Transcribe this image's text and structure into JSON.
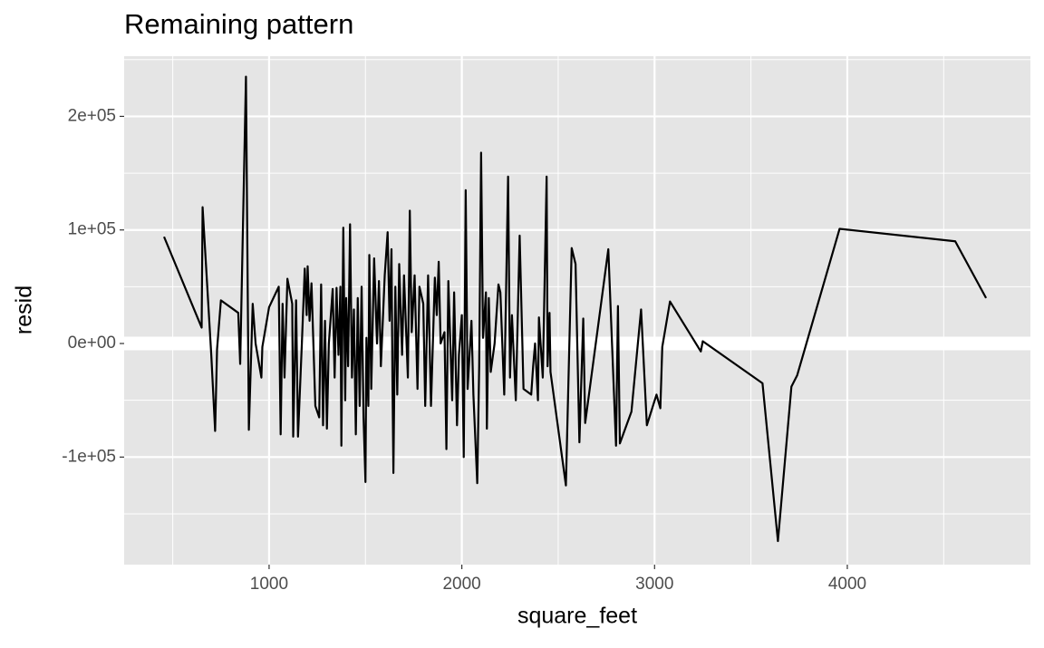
{
  "chart_data": {
    "type": "line",
    "title": "Remaining pattern",
    "x_label": "square_feet",
    "y_label": "resid",
    "color": "#000000",
    "panel_color": "#e5e5e5",
    "grid": true,
    "hline": {
      "value": 0,
      "color": "#ffffff"
    },
    "xlim": [
      248,
      4950
    ],
    "ylim": [
      -194700,
      253000
    ],
    "xticks": [
      1000,
      2000,
      3000,
      4000
    ],
    "yticks": [
      {
        "value": -100000,
        "label": "-1e+05"
      },
      {
        "value": 0,
        "label": "0e+00"
      },
      {
        "value": 100000,
        "label": "1e+05"
      },
      {
        "value": 200000,
        "label": "2e+05"
      }
    ],
    "x": [
      455,
      650,
      655,
      700,
      720,
      730,
      750,
      840,
      850,
      880,
      895,
      915,
      930,
      960,
      965,
      1000,
      1050,
      1060,
      1070,
      1080,
      1095,
      1120,
      1125,
      1140,
      1150,
      1170,
      1185,
      1195,
      1200,
      1210,
      1220,
      1240,
      1260,
      1270,
      1280,
      1290,
      1300,
      1310,
      1330,
      1340,
      1350,
      1360,
      1370,
      1375,
      1385,
      1395,
      1400,
      1410,
      1420,
      1430,
      1440,
      1450,
      1460,
      1470,
      1480,
      1490,
      1500,
      1505,
      1515,
      1520,
      1530,
      1545,
      1560,
      1570,
      1580,
      1600,
      1615,
      1625,
      1635,
      1640,
      1645,
      1655,
      1665,
      1675,
      1690,
      1700,
      1720,
      1730,
      1740,
      1755,
      1770,
      1780,
      1800,
      1810,
      1825,
      1840,
      1860,
      1870,
      1880,
      1890,
      1910,
      1920,
      1930,
      1950,
      1960,
      1975,
      1985,
      2000,
      2010,
      2020,
      2030,
      2050,
      2060,
      2080,
      2090,
      2100,
      2110,
      2125,
      2130,
      2140,
      2150,
      2170,
      2190,
      2200,
      2220,
      2240,
      2250,
      2260,
      2280,
      2300,
      2320,
      2360,
      2370,
      2380,
      2395,
      2400,
      2420,
      2440,
      2445,
      2455,
      2460,
      2540,
      2570,
      2590,
      2610,
      2630,
      2640,
      2760,
      2800,
      2810,
      2820,
      2880,
      2930,
      2960,
      3010,
      3030,
      3040,
      3080,
      3240,
      3250,
      3560,
      3640,
      3710,
      3740,
      3960,
      4560,
      4720
    ],
    "values": [
      94000,
      14000,
      120000,
      -10000,
      -77000,
      -5000,
      38000,
      27000,
      -18000,
      235000,
      -76000,
      35000,
      0,
      -30000,
      -3000,
      32000,
      50000,
      -80000,
      35000,
      -30000,
      57000,
      35000,
      -82000,
      38000,
      -82000,
      0,
      66000,
      25000,
      68000,
      20000,
      53000,
      -55000,
      -65000,
      52000,
      -72000,
      20000,
      -75000,
      0,
      48000,
      -30000,
      49000,
      -10000,
      50000,
      -90000,
      102000,
      -50000,
      40000,
      -20000,
      105000,
      -30000,
      30000,
      -80000,
      40000,
      -55000,
      50000,
      -65000,
      -122000,
      5000,
      -55000,
      78000,
      -40000,
      75000,
      0,
      55000,
      -20000,
      60000,
      98000,
      20000,
      83000,
      -30000,
      -114000,
      50000,
      -45000,
      70000,
      -10000,
      60000,
      -30000,
      117000,
      10000,
      60000,
      -40000,
      50000,
      35000,
      -55000,
      60000,
      -55000,
      58000,
      25000,
      72000,
      0,
      10000,
      -93000,
      55000,
      -50000,
      45000,
      -72000,
      -10000,
      25000,
      -100000,
      135000,
      -40000,
      20000,
      -45000,
      -123000,
      -20000,
      168000,
      5000,
      45000,
      -75000,
      40000,
      -25000,
      0,
      52000,
      45000,
      -45000,
      147000,
      -30000,
      25000,
      -50000,
      95000,
      -40000,
      -45000,
      -20000,
      0,
      -50000,
      23000,
      -30000,
      147000,
      -20000,
      27000,
      -25000,
      -125000,
      84000,
      70000,
      -87000,
      22000,
      -70000,
      83000,
      -90000,
      33000,
      -88000,
      -60000,
      30000,
      -72000,
      -45000,
      -57000,
      -3000,
      37000,
      -7000,
      2000,
      -35000,
      -174000,
      -38000,
      -28000,
      101000,
      90000,
      40000
    ]
  }
}
